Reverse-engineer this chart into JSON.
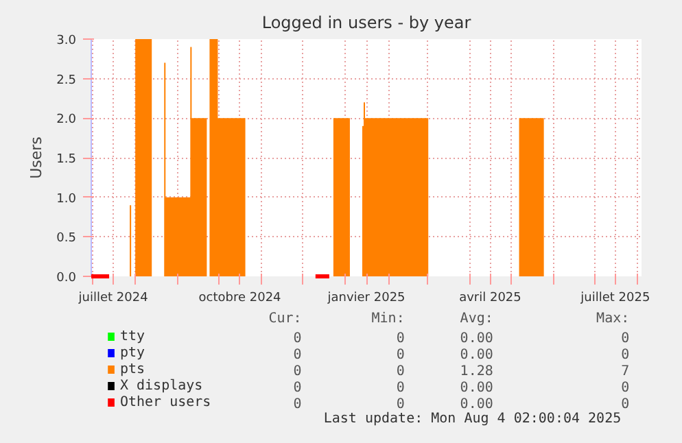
{
  "chart_data": {
    "type": "area",
    "title": "Logged in users - by year",
    "ylabel": "Users",
    "xlim": [
      "2024-06-30",
      "2025-08-04"
    ],
    "xticks": [
      {
        "value": "2024-07-01",
        "label": null
      },
      {
        "value": "2024-07-16",
        "label": "juillet 2024"
      },
      {
        "value": "2024-08-01",
        "label": null
      },
      {
        "value": "2024-09-01",
        "label": null
      },
      {
        "value": "2024-10-01",
        "label": null
      },
      {
        "value": "2024-10-16",
        "label": "octobre 2024"
      },
      {
        "value": "2024-11-01",
        "label": null
      },
      {
        "value": "2024-12-01",
        "label": null
      },
      {
        "value": "2025-01-01",
        "label": null
      },
      {
        "value": "2025-01-16",
        "label": "janvier 2025"
      },
      {
        "value": "2025-02-01",
        "label": null
      },
      {
        "value": "2025-03-01",
        "label": null
      },
      {
        "value": "2025-04-01",
        "label": null
      },
      {
        "value": "2025-04-16",
        "label": "avril 2025"
      },
      {
        "value": "2025-05-01",
        "label": null
      },
      {
        "value": "2025-06-01",
        "label": null
      },
      {
        "value": "2025-07-01",
        "label": null
      },
      {
        "value": "2025-07-16",
        "label": "juillet 2025"
      },
      {
        "value": "2025-08-01",
        "label": null
      }
    ],
    "ylim": [
      0,
      3
    ],
    "yticks": [
      {
        "value": 0,
        "label": "0.0"
      },
      {
        "value": 0.5,
        "label": "0.5"
      },
      {
        "value": 1,
        "label": "1.0"
      },
      {
        "value": 1.5,
        "label": "1.5"
      },
      {
        "value": 2,
        "label": "2.0"
      },
      {
        "value": 2.5,
        "label": "2.5"
      },
      {
        "value": 3,
        "label": "3.0"
      }
    ],
    "grid": true,
    "legend": "bottom",
    "series": [
      {
        "name": "tty",
        "color": "#00ff00",
        "values": [
          null
        ]
      },
      {
        "name": "pty",
        "color": "#0000ff",
        "values": [
          null
        ]
      },
      {
        "name": "pts",
        "color": "#ff8000",
        "x": [
          "2024-06-30",
          "2024-07-28",
          "2024-07-29",
          "2024-08-01",
          "2024-08-13",
          "2024-08-22",
          "2024-08-23",
          "2024-09-10",
          "2024-09-11",
          "2024-09-22",
          "2024-09-24",
          "2024-09-30",
          "2024-10-20",
          "2024-12-23",
          "2025-01-04",
          "2025-01-13",
          "2025-01-14",
          "2025-01-15",
          "2025-03-02",
          "2025-05-07",
          "2025-05-25",
          "2025-08-04"
        ],
        "values": [
          0,
          0.9,
          0,
          3,
          0,
          2.7,
          1,
          2.9,
          2,
          0,
          3,
          2,
          0,
          2,
          0,
          1.9,
          2.2,
          2,
          0,
          2,
          0,
          0
        ]
      },
      {
        "name": "X displays",
        "color": "#000000",
        "values": [
          null
        ]
      },
      {
        "name": "Other users",
        "color": "#ff0000",
        "type": "line",
        "x": [
          "2024-06-30",
          "2024-07-13",
          "2024-07-14",
          "2024-12-10",
          "2024-12-20"
        ],
        "values": [
          0,
          0,
          null,
          0,
          0
        ]
      }
    ],
    "annotations": [
      "Cur:",
      "Min:",
      "Avg:",
      "Max:",
      "0",
      "0",
      "0.00",
      "0",
      "0",
      "0",
      "0.00",
      "0",
      "0",
      "0",
      "1.28",
      "7",
      "0",
      "0",
      "0.00",
      "0",
      "0",
      "0",
      "0.00",
      "0",
      "Last update: Mon Aug  4 02:00:04 2025"
    ]
  }
}
